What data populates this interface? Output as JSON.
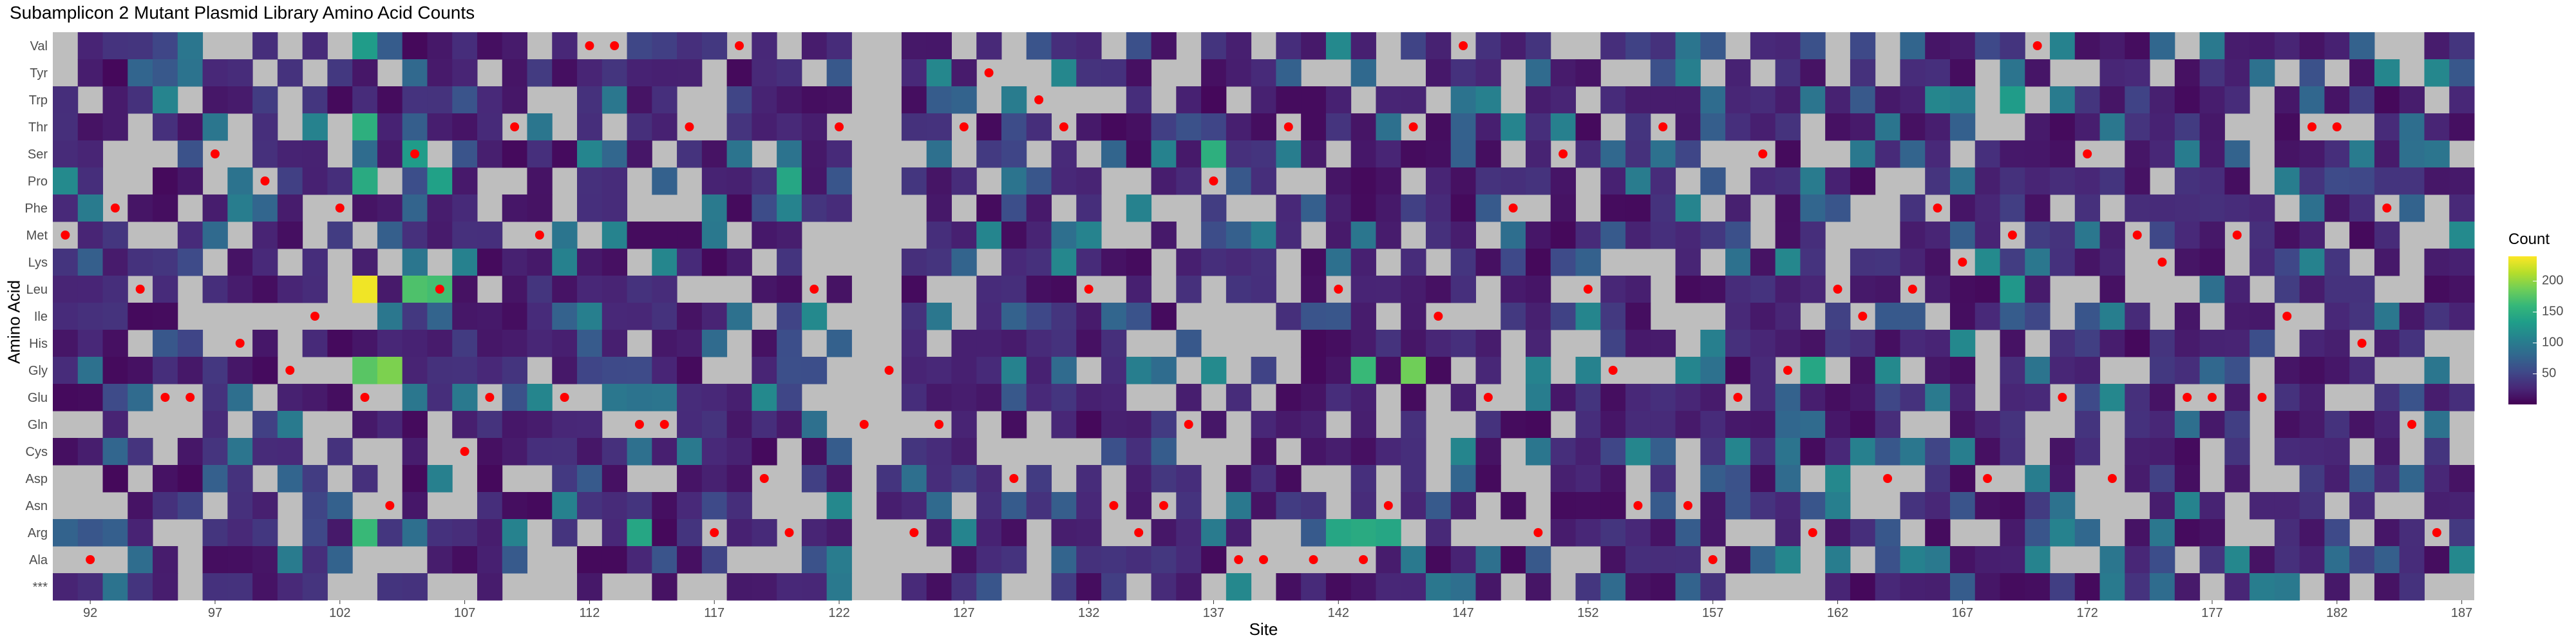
{
  "chart_data": {
    "type": "heatmap",
    "title": "Subamplicon 2 Mutant Plasmid Library Amino Acid Counts",
    "xlabel": "Site",
    "ylabel": "Amino Acid",
    "x_range": [
      91,
      187
    ],
    "x_ticks": [
      92,
      97,
      102,
      107,
      112,
      117,
      122,
      127,
      132,
      137,
      142,
      147,
      152,
      157,
      162,
      167,
      172,
      177,
      182,
      187
    ],
    "y_categories": [
      "Val",
      "Tyr",
      "Trp",
      "Thr",
      "Ser",
      "Pro",
      "Phe",
      "Met",
      "Lys",
      "Leu",
      "Ile",
      "His",
      "Gly",
      "Glu",
      "Gln",
      "Cys",
      "Asp",
      "Asn",
      "Arg",
      "Ala",
      "***"
    ],
    "missing_color": "#bebebe",
    "colorscale": "viridis",
    "legend": {
      "title": "Count",
      "position": "right",
      "ticks": [
        50,
        100,
        150,
        200
      ],
      "range": [
        0,
        240
      ]
    },
    "wildtype_marker_color": "#ff0000",
    "wildtype": [
      {
        "site": 91,
        "aa": "Met"
      },
      {
        "site": 92,
        "aa": "Ala"
      },
      {
        "site": 93,
        "aa": "Phe"
      },
      {
        "site": 94,
        "aa": "Leu"
      },
      {
        "site": 95,
        "aa": "Glu"
      },
      {
        "site": 96,
        "aa": "Glu"
      },
      {
        "site": 97,
        "aa": "Ser"
      },
      {
        "site": 98,
        "aa": "His"
      },
      {
        "site": 99,
        "aa": "Pro"
      },
      {
        "site": 100,
        "aa": "Gly"
      },
      {
        "site": 101,
        "aa": "Ile"
      },
      {
        "site": 102,
        "aa": "Phe"
      },
      {
        "site": 103,
        "aa": "Glu"
      },
      {
        "site": 104,
        "aa": "Asn"
      },
      {
        "site": 105,
        "aa": "Ser"
      },
      {
        "site": 106,
        "aa": "Leu"
      },
      {
        "site": 107,
        "aa": "Cys"
      },
      {
        "site": 108,
        "aa": "Glu"
      },
      {
        "site": 109,
        "aa": "Thr"
      },
      {
        "site": 110,
        "aa": "Met"
      },
      {
        "site": 111,
        "aa": "Glu"
      },
      {
        "site": 112,
        "aa": "Val"
      },
      {
        "site": 113,
        "aa": "Val"
      },
      {
        "site": 114,
        "aa": "Gln"
      },
      {
        "site": 115,
        "aa": "Gln"
      },
      {
        "site": 116,
        "aa": "Thr"
      },
      {
        "site": 117,
        "aa": "Arg"
      },
      {
        "site": 118,
        "aa": "Val"
      },
      {
        "site": 119,
        "aa": "Asp"
      },
      {
        "site": 120,
        "aa": "Arg"
      },
      {
        "site": 121,
        "aa": "Leu"
      },
      {
        "site": 122,
        "aa": "Thr"
      },
      {
        "site": 123,
        "aa": "Gln"
      },
      {
        "site": 124,
        "aa": "Gly"
      },
      {
        "site": 125,
        "aa": "Arg"
      },
      {
        "site": 126,
        "aa": "Gln"
      },
      {
        "site": 127,
        "aa": "Thr"
      },
      {
        "site": 128,
        "aa": "Tyr"
      },
      {
        "site": 129,
        "aa": "Asp"
      },
      {
        "site": 130,
        "aa": "Trp"
      },
      {
        "site": 131,
        "aa": "Thr"
      },
      {
        "site": 132,
        "aa": "Leu"
      },
      {
        "site": 133,
        "aa": "Asn"
      },
      {
        "site": 134,
        "aa": "Arg"
      },
      {
        "site": 135,
        "aa": "Asn"
      },
      {
        "site": 136,
        "aa": "Gln"
      },
      {
        "site": 137,
        "aa": "Pro"
      },
      {
        "site": 138,
        "aa": "Ala"
      },
      {
        "site": 139,
        "aa": "Ala"
      },
      {
        "site": 140,
        "aa": "Thr"
      },
      {
        "site": 141,
        "aa": "Ala"
      },
      {
        "site": 142,
        "aa": "Leu"
      },
      {
        "site": 143,
        "aa": "Ala"
      },
      {
        "site": 144,
        "aa": "Asn"
      },
      {
        "site": 145,
        "aa": "Thr"
      },
      {
        "site": 146,
        "aa": "Ile"
      },
      {
        "site": 147,
        "aa": "Val"
      },
      {
        "site": 148,
        "aa": "Glu"
      },
      {
        "site": 149,
        "aa": "Phe"
      },
      {
        "site": 150,
        "aa": "Arg"
      },
      {
        "site": 151,
        "aa": "Ser"
      },
      {
        "site": 152,
        "aa": "Leu"
      },
      {
        "site": 153,
        "aa": "Gly"
      },
      {
        "site": 154,
        "aa": "Asn"
      },
      {
        "site": 155,
        "aa": "Thr"
      },
      {
        "site": 156,
        "aa": "Asn"
      },
      {
        "site": 157,
        "aa": "Ala"
      },
      {
        "site": 158,
        "aa": "Glu"
      },
      {
        "site": 159,
        "aa": "Ser"
      },
      {
        "site": 160,
        "aa": "Gly"
      },
      {
        "site": 161,
        "aa": "Arg"
      },
      {
        "site": 162,
        "aa": "Leu"
      },
      {
        "site": 163,
        "aa": "Ile"
      },
      {
        "site": 164,
        "aa": "Asp"
      },
      {
        "site": 165,
        "aa": "Leu"
      },
      {
        "site": 166,
        "aa": "Phe"
      },
      {
        "site": 167,
        "aa": "Lys"
      },
      {
        "site": 168,
        "aa": "Asp"
      },
      {
        "site": 169,
        "aa": "Met"
      },
      {
        "site": 170,
        "aa": "Val"
      },
      {
        "site": 171,
        "aa": "Glu"
      },
      {
        "site": 172,
        "aa": "Ser"
      },
      {
        "site": 173,
        "aa": "Asp"
      },
      {
        "site": 174,
        "aa": "Met"
      },
      {
        "site": 175,
        "aa": "Lys"
      },
      {
        "site": 176,
        "aa": "Glu"
      },
      {
        "site": 177,
        "aa": "Glu"
      },
      {
        "site": 178,
        "aa": "Met"
      },
      {
        "site": 179,
        "aa": "Glu"
      },
      {
        "site": 180,
        "aa": "Ile"
      },
      {
        "site": 181,
        "aa": "Thr"
      },
      {
        "site": 182,
        "aa": "Thr"
      },
      {
        "site": 183,
        "aa": "His"
      },
      {
        "site": 184,
        "aa": "Phe"
      },
      {
        "site": 185,
        "aa": "Gln"
      },
      {
        "site": 186,
        "aa": "Arg"
      }
    ],
    "high_count_cells": [
      {
        "site": 103,
        "aa": "Leu",
        "value": 235
      },
      {
        "site": 104,
        "aa": "Gly",
        "value": 190
      },
      {
        "site": 103,
        "aa": "Gly",
        "value": 175
      },
      {
        "site": 106,
        "aa": "Leu",
        "value": 165
      },
      {
        "site": 105,
        "aa": "Leu",
        "value": 170
      },
      {
        "site": 145,
        "aa": "Gly",
        "value": 185
      },
      {
        "site": 143,
        "aa": "Gly",
        "value": 160
      },
      {
        "site": 103,
        "aa": "Arg",
        "value": 160
      },
      {
        "site": 103,
        "aa": "Thr",
        "value": 150
      },
      {
        "site": 103,
        "aa": "Pro",
        "value": 145
      },
      {
        "site": 120,
        "aa": "Pro",
        "value": 140
      },
      {
        "site": 137,
        "aa": "Ser",
        "value": 150
      },
      {
        "site": 161,
        "aa": "Gly",
        "value": 140
      },
      {
        "site": 143,
        "aa": "Arg",
        "value": 145
      },
      {
        "site": 142,
        "aa": "Arg",
        "value": 140
      },
      {
        "site": 144,
        "aa": "Arg",
        "value": 140
      },
      {
        "site": 114,
        "aa": "Arg",
        "value": 140
      },
      {
        "site": 103,
        "aa": "Val",
        "value": 130
      },
      {
        "site": 169,
        "aa": "Trp",
        "value": 130
      },
      {
        "site": 169,
        "aa": "Leu",
        "value": 125
      },
      {
        "site": 106,
        "aa": "Pro",
        "value": 135
      },
      {
        "site": 105,
        "aa": "Ser",
        "value": 130
      }
    ]
  }
}
